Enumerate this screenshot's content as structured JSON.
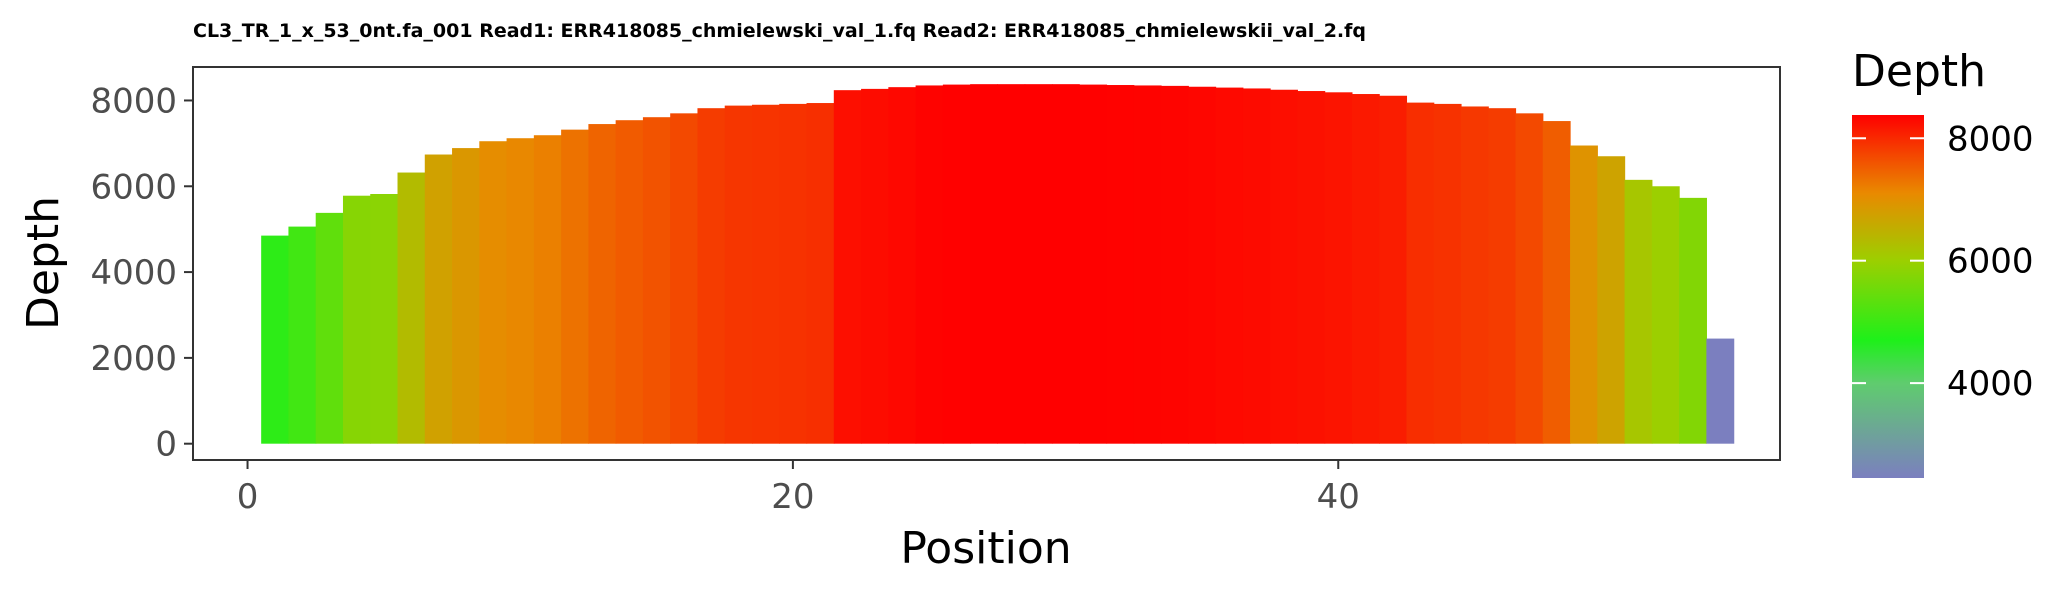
{
  "chart_data": {
    "type": "bar",
    "title": "CL3_TR_1_x_53_0nt.fa_001 Read1: ERR418085_chmielewski_val_1.fq Read2: ERR418085_chmielewskii_val_2.fq",
    "xlabel": "Position",
    "ylabel": "Depth",
    "x": [
      1,
      2,
      3,
      4,
      5,
      6,
      7,
      8,
      9,
      10,
      11,
      12,
      13,
      14,
      15,
      16,
      17,
      18,
      19,
      20,
      21,
      22,
      23,
      24,
      25,
      26,
      27,
      28,
      29,
      30,
      31,
      32,
      33,
      34,
      35,
      36,
      37,
      38,
      39,
      40,
      41,
      42,
      43,
      44,
      45,
      46,
      47,
      48,
      49,
      50,
      51,
      52,
      53,
      54
    ],
    "values": [
      4850,
      5060,
      5380,
      5780,
      5820,
      6320,
      6740,
      6890,
      7050,
      7120,
      7190,
      7320,
      7450,
      7540,
      7610,
      7700,
      7820,
      7880,
      7900,
      7920,
      7940,
      8240,
      8270,
      8310,
      8350,
      8370,
      8380,
      8380,
      8380,
      8380,
      8370,
      8360,
      8350,
      8340,
      8320,
      8300,
      8280,
      8250,
      8220,
      8190,
      8150,
      8110,
      7950,
      7920,
      7860,
      7820,
      7700,
      7520,
      6950,
      6700,
      6150,
      6000,
      5730,
      2450
    ],
    "xlim": [
      -2,
      56.2
    ],
    "ylim": [
      -380,
      8780
    ],
    "xticks": [
      0,
      20,
      40
    ],
    "yticks": [
      0,
      2000,
      4000,
      6000,
      8000
    ],
    "xtick_labels": [
      "0",
      "20",
      "40"
    ],
    "ytick_labels": [
      "0",
      "2000",
      "4000",
      "6000",
      "8000"
    ],
    "grid": false,
    "legend": {
      "title": "Depth",
      "placement": "right",
      "min": 2450,
      "max": 8380,
      "ticks": [
        4000,
        6000,
        8000
      ],
      "tick_labels": [
        "4000",
        "6000",
        "8000"
      ]
    },
    "color_scale": {
      "stops": [
        {
          "value": 2450,
          "color": "#7b7fbf"
        },
        {
          "value": 4000,
          "color": "#5fcc6e"
        },
        {
          "value": 4700,
          "color": "#1ef01a"
        },
        {
          "value": 6000,
          "color": "#9ccf00"
        },
        {
          "value": 7100,
          "color": "#e98a00"
        },
        {
          "value": 8380,
          "color": "#ff0000"
        }
      ]
    }
  }
}
